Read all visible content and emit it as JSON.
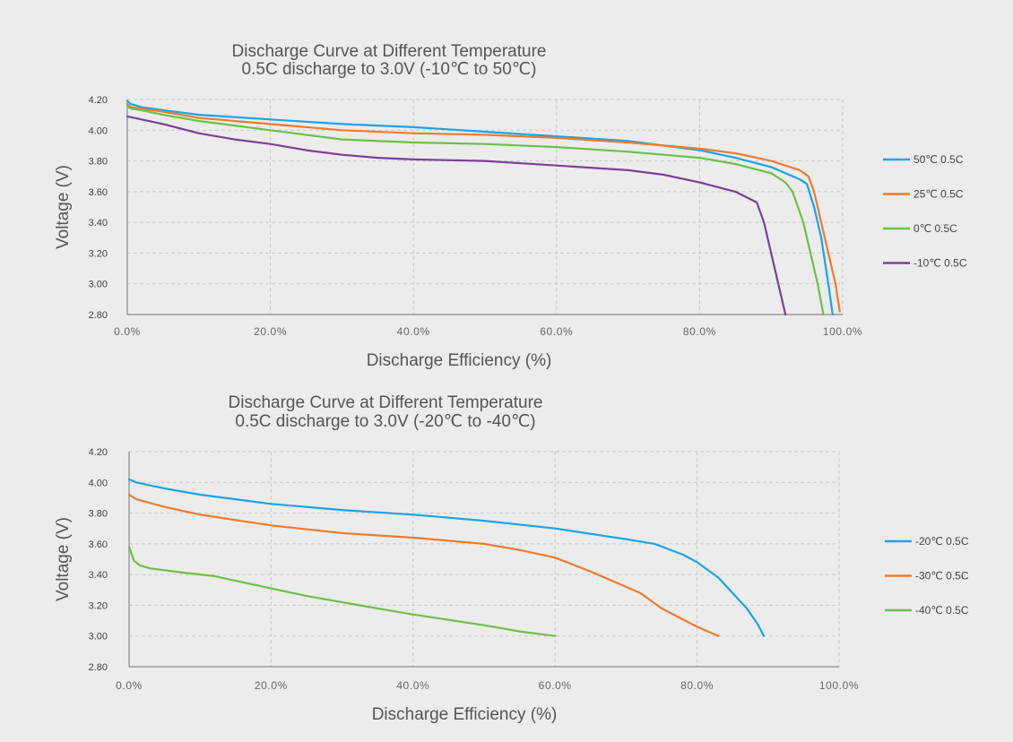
{
  "chart_data": [
    {
      "type": "line",
      "title": "Discharge Curve at Different Temperature",
      "subtitle": "0.5C discharge to 3.0V (-10℃ to 50℃)",
      "xlabel": "Discharge Efficiency (%)",
      "ylabel": "Voltage  (V)",
      "xlim": [
        0,
        100
      ],
      "ylim": [
        2.8,
        4.2
      ],
      "x_ticks": [
        "0.0%",
        "20.0%",
        "40.0%",
        "60.0%",
        "80.0%",
        "100.0%"
      ],
      "y_ticks": [
        "4.20",
        "4.00",
        "3.80",
        "3.60",
        "3.40",
        "3.20",
        "3.00",
        "2.80"
      ],
      "grid": true,
      "legend_position": "right",
      "series": [
        {
          "name": "50℃  0.5C",
          "color": "#1aa3e8",
          "points": [
            [
              0,
              4.19
            ],
            [
              0.5,
              4.17
            ],
            [
              2,
              4.15
            ],
            [
              5,
              4.13
            ],
            [
              10,
              4.1
            ],
            [
              20,
              4.07
            ],
            [
              30,
              4.04
            ],
            [
              40,
              4.02
            ],
            [
              50,
              3.99
            ],
            [
              60,
              3.96
            ],
            [
              70,
              3.93
            ],
            [
              80,
              3.87
            ],
            [
              85,
              3.82
            ],
            [
              90,
              3.76
            ],
            [
              94,
              3.68
            ],
            [
              95,
              3.65
            ],
            [
              96,
              3.5
            ],
            [
              97,
              3.3
            ],
            [
              98,
              3.0
            ],
            [
              98.6,
              2.8
            ]
          ]
        },
        {
          "name": "25℃  0.5C",
          "color": "#f07b2b",
          "points": [
            [
              0,
              4.17
            ],
            [
              0.5,
              4.15
            ],
            [
              2,
              4.14
            ],
            [
              5,
              4.12
            ],
            [
              10,
              4.08
            ],
            [
              20,
              4.04
            ],
            [
              30,
              4.0
            ],
            [
              40,
              3.98
            ],
            [
              50,
              3.97
            ],
            [
              60,
              3.95
            ],
            [
              70,
              3.92
            ],
            [
              80,
              3.88
            ],
            [
              85,
              3.85
            ],
            [
              90,
              3.8
            ],
            [
              94,
              3.74
            ],
            [
              95.2,
              3.7
            ],
            [
              96,
              3.6
            ],
            [
              97,
              3.4
            ],
            [
              98,
              3.2
            ],
            [
              99,
              3.0
            ],
            [
              99.6,
              2.82
            ]
          ]
        },
        {
          "name": "0℃  0.5C",
          "color": "#6cc04a",
          "points": [
            [
              0,
              4.16
            ],
            [
              0.5,
              4.14
            ],
            [
              2,
              4.13
            ],
            [
              5,
              4.1
            ],
            [
              10,
              4.06
            ],
            [
              15,
              4.03
            ],
            [
              20,
              4.0
            ],
            [
              30,
              3.94
            ],
            [
              40,
              3.92
            ],
            [
              50,
              3.91
            ],
            [
              60,
              3.89
            ],
            [
              70,
              3.86
            ],
            [
              80,
              3.82
            ],
            [
              85,
              3.78
            ],
            [
              90,
              3.72
            ],
            [
              92,
              3.66
            ],
            [
              93,
              3.6
            ],
            [
              94.5,
              3.4
            ],
            [
              95.5,
              3.2
            ],
            [
              96.5,
              3.0
            ],
            [
              97.3,
              2.8
            ]
          ]
        },
        {
          "name": "-10℃  0.5C",
          "color": "#7d3f98",
          "points": [
            [
              0,
              4.09
            ],
            [
              2,
              4.07
            ],
            [
              5,
              4.04
            ],
            [
              10,
              3.98
            ],
            [
              15,
              3.94
            ],
            [
              20,
              3.91
            ],
            [
              25,
              3.87
            ],
            [
              30,
              3.84
            ],
            [
              35,
              3.82
            ],
            [
              40,
              3.81
            ],
            [
              50,
              3.8
            ],
            [
              60,
              3.77
            ],
            [
              70,
              3.74
            ],
            [
              75,
              3.71
            ],
            [
              80,
              3.66
            ],
            [
              85,
              3.6
            ],
            [
              88,
              3.53
            ],
            [
              89,
              3.4
            ],
            [
              90,
              3.2
            ],
            [
              91,
              3.0
            ],
            [
              92,
              2.8
            ]
          ]
        }
      ]
    },
    {
      "type": "line",
      "title": "Discharge Curve at Different Temperature",
      "subtitle": "0.5C discharge to 3.0V (-20℃ to -40℃)",
      "xlabel": "Discharge Efficiency (%)",
      "ylabel": "Voltage  (V)",
      "xlim": [
        0,
        100
      ],
      "ylim": [
        2.8,
        4.2
      ],
      "x_ticks": [
        "0.0%",
        "20.0%",
        "40.0%",
        "60.0%",
        "80.0%",
        "100.0%"
      ],
      "y_ticks": [
        "4.20",
        "4.00",
        "3.80",
        "3.60",
        "3.40",
        "3.20",
        "3.00",
        "2.80"
      ],
      "grid": true,
      "legend_position": "right",
      "series": [
        {
          "name": "-20℃  0.5C",
          "color": "#1aa3e8",
          "points": [
            [
              0,
              4.02
            ],
            [
              1,
              4.0
            ],
            [
              5,
              3.96
            ],
            [
              10,
              3.92
            ],
            [
              20,
              3.86
            ],
            [
              30,
              3.82
            ],
            [
              40,
              3.79
            ],
            [
              50,
              3.75
            ],
            [
              60,
              3.7
            ],
            [
              70,
              3.63
            ],
            [
              74,
              3.6
            ],
            [
              78,
              3.53
            ],
            [
              80,
              3.48
            ],
            [
              83,
              3.38
            ],
            [
              85,
              3.28
            ],
            [
              87,
              3.18
            ],
            [
              88.5,
              3.08
            ],
            [
              89.4,
              3.0
            ]
          ]
        },
        {
          "name": "-30℃  0.5C",
          "color": "#f07b2b",
          "points": [
            [
              0,
              3.92
            ],
            [
              1,
              3.89
            ],
            [
              5,
              3.84
            ],
            [
              10,
              3.79
            ],
            [
              20,
              3.72
            ],
            [
              30,
              3.67
            ],
            [
              40,
              3.64
            ],
            [
              45,
              3.62
            ],
            [
              50,
              3.6
            ],
            [
              55,
              3.56
            ],
            [
              60,
              3.51
            ],
            [
              65,
              3.42
            ],
            [
              70,
              3.32
            ],
            [
              72,
              3.28
            ],
            [
              75,
              3.18
            ],
            [
              80,
              3.06
            ],
            [
              83,
              3.0
            ]
          ]
        },
        {
          "name": "-40℃  0.5C",
          "color": "#6cc04a",
          "points": [
            [
              0,
              3.58
            ],
            [
              0.3,
              3.54
            ],
            [
              0.7,
              3.49
            ],
            [
              1.5,
              3.46
            ],
            [
              3,
              3.44
            ],
            [
              8,
              3.41
            ],
            [
              12,
              3.39
            ],
            [
              20,
              3.31
            ],
            [
              25,
              3.26
            ],
            [
              30,
              3.22
            ],
            [
              35,
              3.18
            ],
            [
              40,
              3.14
            ],
            [
              50,
              3.07
            ],
            [
              55,
              3.03
            ],
            [
              60,
              3.0
            ]
          ]
        }
      ]
    }
  ]
}
